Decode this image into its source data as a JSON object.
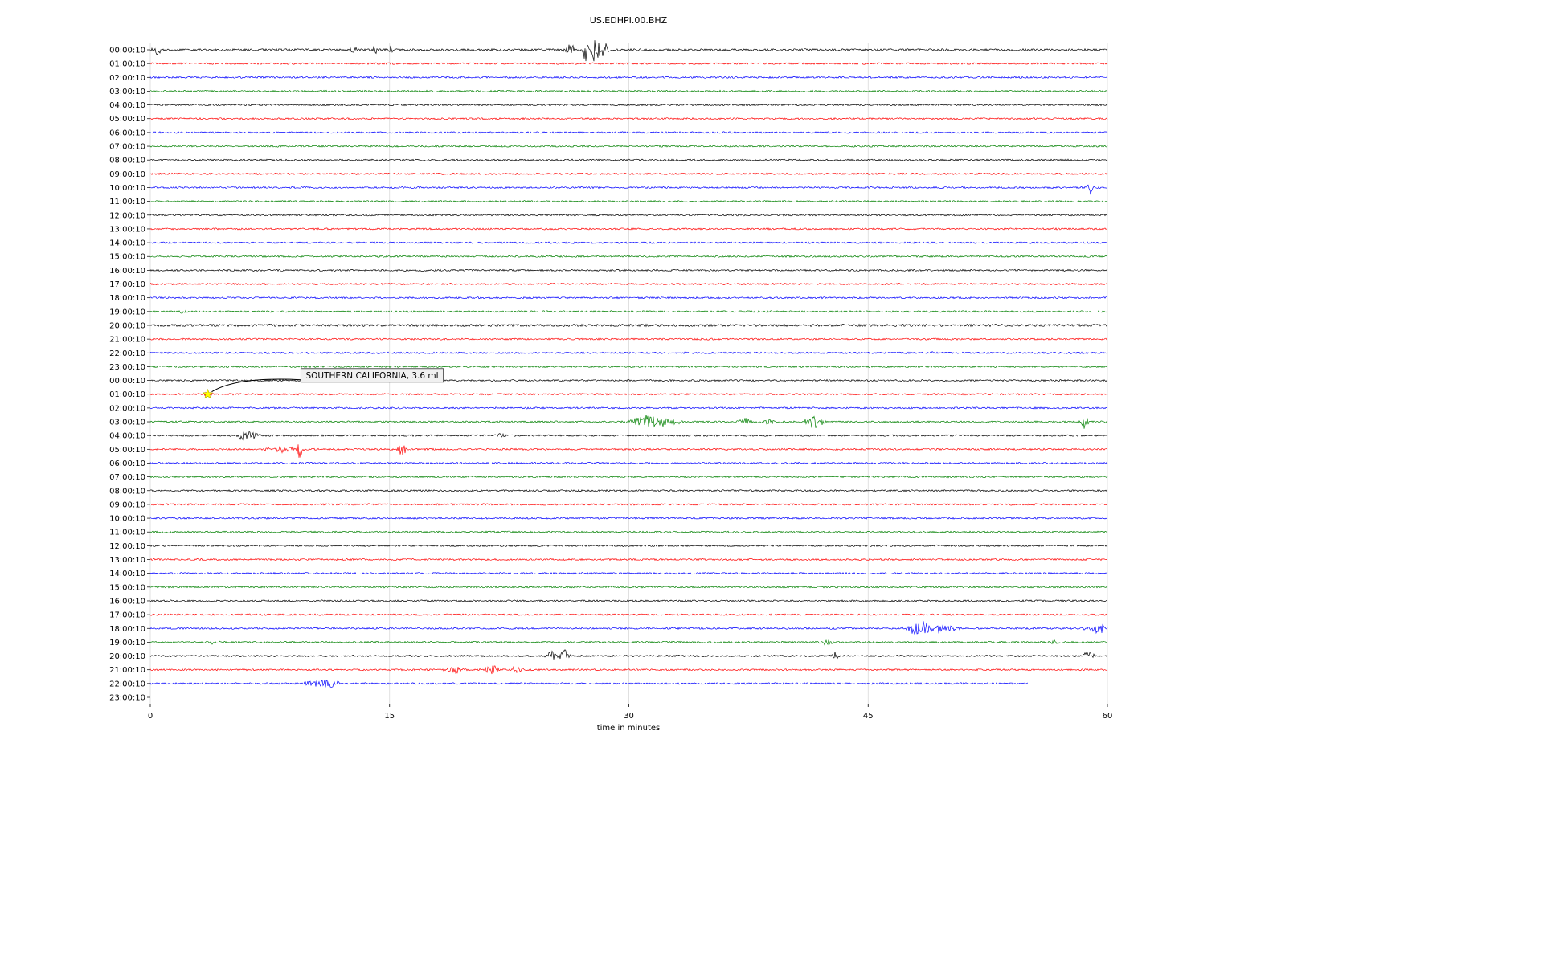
{
  "chart_data": {
    "type": "line",
    "subtype": "seismogram-helicorder",
    "title": "US.EDHPI.00.BHZ",
    "xlabel": "time in minutes",
    "x_ticks": [
      0,
      15,
      30,
      45,
      60
    ],
    "x_range": [
      0,
      60
    ],
    "grid": true,
    "colors": {
      "black": "#000000",
      "red": "#ff0000",
      "blue": "#0000ff",
      "green": "#008000"
    },
    "annotation": {
      "text": "SOUTHERN CALIFORNIA, 3.6 ml",
      "row_index": 25,
      "minute": 3.6,
      "marker": "star",
      "marker_color": "#ffff00"
    },
    "rows": [
      {
        "label": "00:00:10",
        "color": "black",
        "noise": 1.3,
        "events": [
          {
            "m": 0.4,
            "a": 5,
            "w": 0.3
          },
          {
            "m": 12.7,
            "a": 4,
            "w": 0.25
          },
          {
            "m": 14.1,
            "a": 5,
            "w": 0.15
          },
          {
            "m": 15.1,
            "a": 7,
            "w": 0.12
          },
          {
            "m": 26.3,
            "a": 7,
            "w": 0.3
          },
          {
            "m": 27.3,
            "a": 13,
            "w": 0.18
          },
          {
            "m": 27.9,
            "a": 15,
            "w": 0.35
          },
          {
            "m": 28.5,
            "a": 9,
            "w": 0.25
          }
        ]
      },
      {
        "label": "01:00:10",
        "color": "red"
      },
      {
        "label": "02:00:10",
        "color": "blue"
      },
      {
        "label": "03:00:10",
        "color": "green"
      },
      {
        "label": "04:00:10",
        "color": "black"
      },
      {
        "label": "05:00:10",
        "color": "red"
      },
      {
        "label": "06:00:10",
        "color": "blue"
      },
      {
        "label": "07:00:10",
        "color": "green"
      },
      {
        "label": "08:00:10",
        "color": "black"
      },
      {
        "label": "09:00:10",
        "color": "red"
      },
      {
        "label": "10:00:10",
        "color": "blue",
        "events": [
          {
            "m": 58.9,
            "a": 9,
            "w": 0.18
          }
        ]
      },
      {
        "label": "11:00:10",
        "color": "green"
      },
      {
        "label": "12:00:10",
        "color": "black"
      },
      {
        "label": "13:00:10",
        "color": "red"
      },
      {
        "label": "14:00:10",
        "color": "blue"
      },
      {
        "label": "15:00:10",
        "color": "green"
      },
      {
        "label": "16:00:10",
        "color": "black"
      },
      {
        "label": "17:00:10",
        "color": "red"
      },
      {
        "label": "18:00:10",
        "color": "blue"
      },
      {
        "label": "19:00:10",
        "color": "green",
        "events": [
          {
            "m": 2.0,
            "a": 2.5,
            "w": 0.2
          }
        ]
      },
      {
        "label": "20:00:10",
        "color": "black",
        "noise": 1.5
      },
      {
        "label": "21:00:10",
        "color": "red"
      },
      {
        "label": "22:00:10",
        "color": "blue",
        "events": [
          {
            "m": 49.0,
            "a": 2.5,
            "w": 0.15
          }
        ]
      },
      {
        "label": "23:00:10",
        "color": "green"
      },
      {
        "label": "00:00:10",
        "color": "black"
      },
      {
        "label": "01:00:10",
        "color": "red",
        "events": [
          {
            "m": 3.6,
            "a": 2,
            "w": 0.3
          }
        ]
      },
      {
        "label": "02:00:10",
        "color": "blue"
      },
      {
        "label": "03:00:10",
        "color": "green",
        "events": [
          {
            "m": 30.9,
            "a": 8,
            "w": 0.9
          },
          {
            "m": 32.3,
            "a": 4,
            "w": 1.2
          },
          {
            "m": 37.3,
            "a": 5,
            "w": 0.35
          },
          {
            "m": 39.0,
            "a": 3,
            "w": 0.7
          },
          {
            "m": 41.6,
            "a": 8,
            "w": 0.6
          },
          {
            "m": 58.6,
            "a": 9,
            "w": 0.25
          }
        ]
      },
      {
        "label": "04:00:10",
        "color": "black",
        "events": [
          {
            "m": 5.9,
            "a": 7,
            "w": 0.4
          },
          {
            "m": 6.6,
            "a": 4,
            "w": 0.25
          },
          {
            "m": 22.0,
            "a": 3,
            "w": 0.25
          }
        ]
      },
      {
        "label": "05:00:10",
        "color": "red",
        "events": [
          {
            "m": 8.2,
            "a": 4,
            "w": 0.9
          },
          {
            "m": 9.3,
            "a": 13,
            "w": 0.22
          },
          {
            "m": 15.8,
            "a": 9,
            "w": 0.28
          }
        ]
      },
      {
        "label": "06:00:10",
        "color": "blue"
      },
      {
        "label": "07:00:10",
        "color": "green"
      },
      {
        "label": "08:00:10",
        "color": "black"
      },
      {
        "label": "09:00:10",
        "color": "red"
      },
      {
        "label": "10:00:10",
        "color": "blue"
      },
      {
        "label": "11:00:10",
        "color": "green"
      },
      {
        "label": "12:00:10",
        "color": "black"
      },
      {
        "label": "13:00:10",
        "color": "red"
      },
      {
        "label": "14:00:10",
        "color": "blue"
      },
      {
        "label": "15:00:10",
        "color": "green"
      },
      {
        "label": "16:00:10",
        "color": "black"
      },
      {
        "label": "17:00:10",
        "color": "red"
      },
      {
        "label": "18:00:10",
        "color": "blue",
        "events": [
          {
            "m": 48.2,
            "a": 10,
            "w": 0.7
          },
          {
            "m": 49.6,
            "a": 4,
            "w": 0.9
          },
          {
            "m": 59.4,
            "a": 6,
            "w": 0.7
          }
        ]
      },
      {
        "label": "19:00:10",
        "color": "green",
        "events": [
          {
            "m": 4.0,
            "a": 3,
            "w": 0.25
          },
          {
            "m": 42.4,
            "a": 4,
            "w": 0.35
          },
          {
            "m": 56.6,
            "a": 3,
            "w": 0.3
          }
        ]
      },
      {
        "label": "20:00:10",
        "color": "black",
        "events": [
          {
            "m": 25.1,
            "a": 7,
            "w": 0.25
          },
          {
            "m": 25.9,
            "a": 9,
            "w": 0.3
          },
          {
            "m": 42.9,
            "a": 6,
            "w": 0.2
          },
          {
            "m": 58.8,
            "a": 7,
            "w": 0.35
          }
        ]
      },
      {
        "label": "21:00:10",
        "color": "red",
        "events": [
          {
            "m": 19.1,
            "a": 5,
            "w": 0.5
          },
          {
            "m": 21.4,
            "a": 6,
            "w": 0.45
          },
          {
            "m": 22.9,
            "a": 5,
            "w": 0.4
          }
        ]
      },
      {
        "label": "22:00:10",
        "color": "blue",
        "end_minute": 55,
        "events": [
          {
            "m": 10.4,
            "a": 5,
            "w": 0.7
          },
          {
            "m": 11.4,
            "a": 4,
            "w": 0.5
          }
        ]
      },
      {
        "label": "23:00:10",
        "color": "green",
        "empty": true
      }
    ]
  }
}
